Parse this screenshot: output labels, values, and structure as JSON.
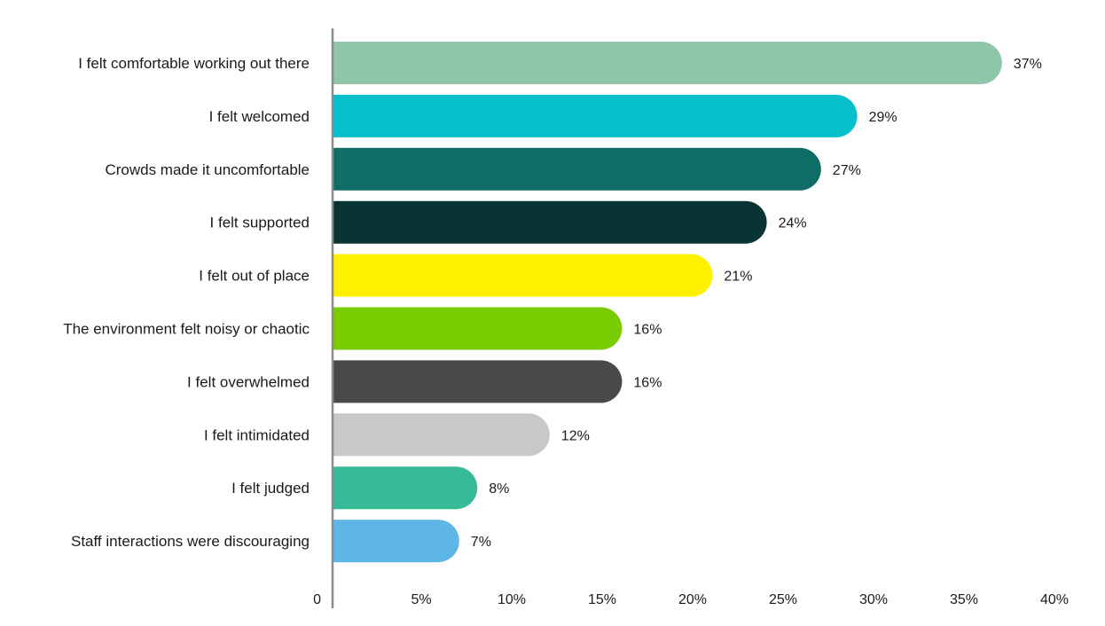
{
  "chart_data": {
    "type": "bar",
    "orientation": "horizontal",
    "categories": [
      "I felt comfortable working out there",
      "I felt welcomed",
      "Crowds made it uncomfortable",
      "I felt supported",
      "I felt out of place",
      "The environment felt noisy or chaotic",
      "I felt overwhelmed",
      "I felt intimidated",
      "I felt judged",
      "Staff interactions were discouraging"
    ],
    "values": [
      37,
      29,
      27,
      24,
      21,
      16,
      16,
      12,
      8,
      7
    ],
    "value_labels": [
      "37%",
      "29%",
      "27%",
      "24%",
      "21%",
      "16%",
      "16%",
      "12%",
      "8%",
      "7%"
    ],
    "colors": [
      "#8fc5a9",
      "#05bfcc",
      "#0e6e66",
      "#083533",
      "#fff000",
      "#78cc00",
      "#4a4a4a",
      "#c9c8c8",
      "#36ba98",
      "#5db6e5"
    ],
    "xlim": [
      0,
      40
    ],
    "x_ticks": [
      0,
      5,
      10,
      15,
      20,
      25,
      30,
      35,
      40
    ],
    "x_tick_labels": [
      "0",
      "5%",
      "10%",
      "15%",
      "20%",
      "25%",
      "30%",
      "35%",
      "40%"
    ],
    "grid": false,
    "axis_color": "#8a8a8a",
    "title": "",
    "xlabel": "",
    "ylabel": ""
  }
}
